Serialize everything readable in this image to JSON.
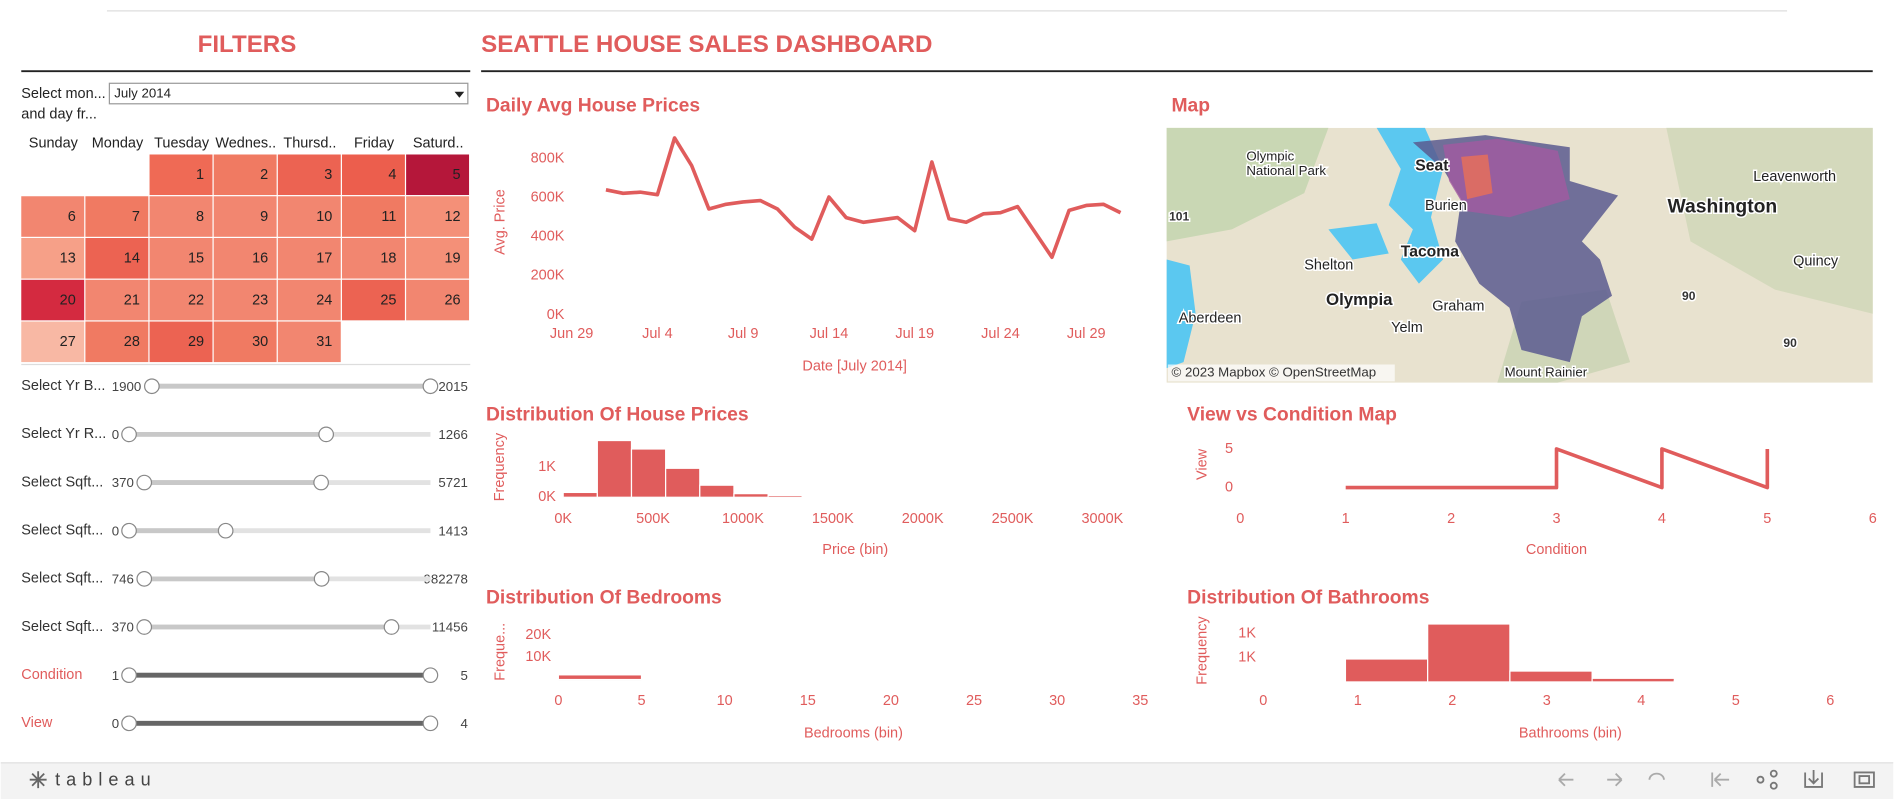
{
  "header": {
    "filters_title": "FILTERS",
    "dashboard_title": "SEATTLE HOUSE SALES DASHBOARD"
  },
  "filters": {
    "month_label": [
      "Select mon...",
      "and day fr..."
    ],
    "month_value": "July 2014",
    "calendar": {
      "weekdays": [
        "Sunday",
        "Monday",
        "Tuesday",
        "Wednes..",
        "Thursd..",
        "Friday",
        "Saturd.."
      ],
      "days": [
        {
          "day": 1,
          "color": "#ef6a55"
        },
        {
          "day": 2,
          "color": "#f07a62"
        },
        {
          "day": 3,
          "color": "#ec6352"
        },
        {
          "day": 4,
          "color": "#ec5e4d"
        },
        {
          "day": 5,
          "color": "#b5173a"
        },
        {
          "day": 6,
          "color": "#f28670"
        },
        {
          "day": 7,
          "color": "#f07a62"
        },
        {
          "day": 8,
          "color": "#f28670"
        },
        {
          "day": 9,
          "color": "#f28670"
        },
        {
          "day": 10,
          "color": "#f28670"
        },
        {
          "day": 11,
          "color": "#f07a62"
        },
        {
          "day": 12,
          "color": "#f49078"
        },
        {
          "day": 13,
          "color": "#f6a088"
        },
        {
          "day": 14,
          "color": "#ec6352"
        },
        {
          "day": 15,
          "color": "#f28670"
        },
        {
          "day": 16,
          "color": "#f28670"
        },
        {
          "day": 17,
          "color": "#f28670"
        },
        {
          "day": 18,
          "color": "#f28670"
        },
        {
          "day": 19,
          "color": "#f49078"
        },
        {
          "day": 20,
          "color": "#d42a40"
        },
        {
          "day": 21,
          "color": "#f28670"
        },
        {
          "day": 22,
          "color": "#f28670"
        },
        {
          "day": 23,
          "color": "#f28670"
        },
        {
          "day": 24,
          "color": "#f28670"
        },
        {
          "day": 25,
          "color": "#ec6352"
        },
        {
          "day": 26,
          "color": "#f28670"
        },
        {
          "day": 27,
          "color": "#f8b8a4"
        },
        {
          "day": 28,
          "color": "#f07a62"
        },
        {
          "day": 29,
          "color": "#ec6352"
        },
        {
          "day": 30,
          "color": "#f07a62"
        },
        {
          "day": 31,
          "color": "#f28670"
        }
      ]
    },
    "sliders": [
      {
        "label": "Select Yr B...",
        "min": 1900,
        "max": 2015,
        "low": 1900,
        "high": 2015,
        "label_color": "#333333",
        "fill_color": "#c8c8c8"
      },
      {
        "label": "Select Yr R...",
        "min": 0,
        "max": 1266,
        "low": 0,
        "high": 828,
        "label_color": "#333333",
        "fill_color": "#c8c8c8"
      },
      {
        "label": "Select Sqft...",
        "min": 370,
        "max": 5721,
        "low": 370,
        "high": 3677,
        "label_color": "#333333",
        "fill_color": "#c8c8c8"
      },
      {
        "label": "Select Sqft...",
        "min": 0,
        "max": 1413,
        "low": 0,
        "high": 453,
        "label_color": "#333333",
        "fill_color": "#c8c8c8"
      },
      {
        "label": "Select Sqft...",
        "min": 746,
        "max": 982278,
        "low": 746,
        "high": 609000,
        "label_color": "#333333",
        "fill_color": "#c8c8c8"
      },
      {
        "label": "Select Sqft...",
        "min": 370,
        "max": 11456,
        "low": 370,
        "high": 9948,
        "label_color": "#333333",
        "fill_color": "#c8c8c8"
      },
      {
        "label": "Condition",
        "min": 1,
        "max": 5,
        "low": 1,
        "high": 5,
        "label_color": "#e05c5c",
        "fill_color": "#666666"
      },
      {
        "label": "View",
        "min": 0,
        "max": 4,
        "low": 0,
        "high": 4,
        "label_color": "#e05c5c",
        "fill_color": "#666666"
      }
    ]
  },
  "chart_data": [
    {
      "type": "line",
      "title": "Daily Avg House Prices",
      "x_label": "Date [July 2014]",
      "y_label": "Avg. Price",
      "color": "#e05c5c",
      "x": [
        "2014-07-01",
        "2014-07-02",
        "2014-07-03",
        "2014-07-04",
        "2014-07-05",
        "2014-07-06",
        "2014-07-07",
        "2014-07-08",
        "2014-07-09",
        "2014-07-10",
        "2014-07-11",
        "2014-07-12",
        "2014-07-13",
        "2014-07-14",
        "2014-07-15",
        "2014-07-16",
        "2014-07-17",
        "2014-07-18",
        "2014-07-19",
        "2014-07-20",
        "2014-07-21",
        "2014-07-22",
        "2014-07-23",
        "2014-07-24",
        "2014-07-25",
        "2014-07-26",
        "2014-07-27",
        "2014-07-28",
        "2014-07-29",
        "2014-07-30",
        "2014-07-31"
      ],
      "values": [
        640000,
        622000,
        628000,
        615000,
        905000,
        763000,
        542000,
        566000,
        578000,
        585000,
        542000,
        449000,
        388000,
        603000,
        498000,
        474000,
        486000,
        498000,
        431000,
        782000,
        492000,
        474000,
        517000,
        523000,
        554000,
        425000,
        295000,
        535000,
        560000,
        566000,
        523000
      ],
      "xlim": [
        "2014-06-29",
        "2014-08-01"
      ],
      "xticks": [
        {
          "value": "2014-06-29",
          "label": "Jun 29"
        },
        {
          "value": "2014-07-04",
          "label": "Jul 4"
        },
        {
          "value": "2014-07-09",
          "label": "Jul 9"
        },
        {
          "value": "2014-07-14",
          "label": "Jul 14"
        },
        {
          "value": "2014-07-19",
          "label": "Jul 19"
        },
        {
          "value": "2014-07-24",
          "label": "Jul 24"
        },
        {
          "value": "2014-07-29",
          "label": "Jul 29"
        }
      ],
      "ylim": [
        0,
        950000
      ],
      "yticks": [
        {
          "value": 0,
          "label": "0K"
        },
        {
          "value": 200000,
          "label": "200K"
        },
        {
          "value": 400000,
          "label": "400K"
        },
        {
          "value": 600000,
          "label": "600K"
        },
        {
          "value": 800000,
          "label": "800K"
        }
      ]
    },
    {
      "type": "histogram",
      "title": "Distribution Of House Prices",
      "x_label": "Price (bin)",
      "y_label": "Frequency",
      "color": "#e05c5c",
      "bins": [
        0,
        190000,
        380000,
        570000,
        760000,
        950000,
        1140000,
        1330000,
        1520000,
        1710000
      ],
      "counts": [
        160,
        1880,
        1600,
        960,
        400,
        120,
        60,
        30,
        20
      ],
      "xlim": [
        0,
        3250000
      ],
      "xticks": [
        {
          "value": 0,
          "label": "0K"
        },
        {
          "value": 500000,
          "label": "500K"
        },
        {
          "value": 1000000,
          "label": "1000K"
        },
        {
          "value": 1500000,
          "label": "1500K"
        },
        {
          "value": 2000000,
          "label": "2000K"
        },
        {
          "value": 2500000,
          "label": "2500K"
        },
        {
          "value": 3000000,
          "label": "3000K"
        }
      ],
      "ylim": [
        0,
        2000
      ],
      "yticks": [
        {
          "value": 0,
          "label": "0K"
        },
        {
          "value": 1000,
          "label": "1K"
        }
      ]
    },
    {
      "type": "line",
      "title": "View vs Condition Map",
      "x_label": "Condition",
      "y_label": "View",
      "color": "#e05c5c",
      "x": [
        1,
        2,
        3,
        3,
        4,
        4,
        5,
        5
      ],
      "values": [
        0,
        0,
        0,
        5,
        0,
        5,
        0,
        5
      ],
      "xlim": [
        0,
        6
      ],
      "xticks": [
        0,
        1,
        2,
        3,
        4,
        5,
        6
      ],
      "ylim": [
        0,
        6
      ],
      "yticks": [
        0,
        5
      ]
    },
    {
      "type": "histogram",
      "title": "Distribution Of Bedrooms",
      "x_label": "Bedrooms (bin)",
      "y_label": "Freque...",
      "color": "#e05c5c",
      "bins": [
        0,
        5
      ],
      "counts": [
        2100
      ],
      "xlim": [
        0,
        35.5
      ],
      "xticks": [
        0,
        5,
        10,
        15,
        20,
        25,
        30,
        35
      ],
      "ylim": [
        0,
        25000
      ],
      "yticks": [
        {
          "value": 10000,
          "label": "10K"
        },
        {
          "value": 20000,
          "label": "20K"
        }
      ]
    },
    {
      "type": "histogram",
      "title": "Distribution Of Bathrooms",
      "x_label": "Bathrooms (bin)",
      "y_label": "Frequency",
      "color": "#e05c5c",
      "bins": [
        0.87,
        1.74,
        2.61,
        3.48,
        4.35,
        5.22
      ],
      "counts": [
        475,
        1200,
        225,
        75,
        25
      ],
      "xlim": [
        0,
        6.5
      ],
      "xticks": [
        0,
        1,
        2,
        3,
        4,
        5,
        6
      ],
      "ylim": [
        0,
        1300
      ],
      "yticks": [
        {
          "value": 500,
          "label": "1K"
        },
        {
          "value": 1000,
          "label": "1K"
        }
      ]
    }
  ],
  "map": {
    "title": "Map",
    "labels": [
      "Olympic",
      "National Park",
      "Seat",
      "Burien",
      "Tacoma",
      "Leavenworth",
      "Washington",
      "Shelton",
      "Olympia",
      "Graham",
      "Aberdeen",
      "Yelm",
      "Quincy",
      "Mount Rainier",
      "101",
      "90",
      "90"
    ],
    "attribution": "© 2023 Mapbox  © OpenStreetMap"
  },
  "footer": {
    "brand": "tableau"
  }
}
